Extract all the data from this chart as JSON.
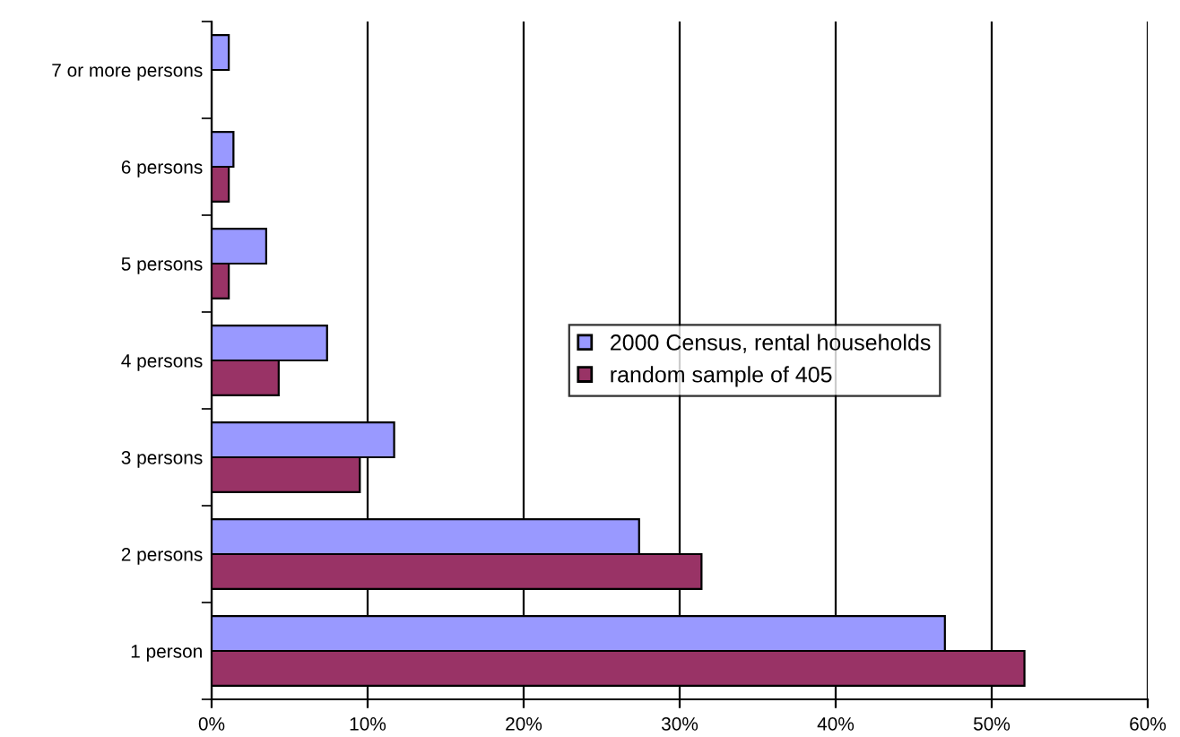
{
  "chart_data": {
    "type": "bar",
    "orientation": "horizontal",
    "categories": [
      "7 or more persons",
      "6 persons",
      "5 persons",
      "4 persons",
      "3 persons",
      "2 persons",
      "1 person"
    ],
    "series": [
      {
        "name": "2000 Census, rental households",
        "color": "#9999ff",
        "values": [
          1.1,
          1.4,
          3.5,
          7.4,
          11.7,
          27.4,
          47.0
        ]
      },
      {
        "name": "random sample of 405",
        "color": "#993366",
        "values": [
          null,
          1.1,
          1.1,
          4.3,
          9.5,
          31.4,
          52.1
        ]
      }
    ],
    "xlim": [
      0,
      60
    ],
    "xticks": [
      {
        "value": 0,
        "label": "0%"
      },
      {
        "value": 10,
        "label": "10%"
      },
      {
        "value": 20,
        "label": "20%"
      },
      {
        "value": 30,
        "label": "30%"
      },
      {
        "value": 40,
        "label": "40%"
      },
      {
        "value": 50,
        "label": "50%"
      },
      {
        "value": 60,
        "label": "60%"
      }
    ],
    "grid": "x",
    "legend": "right"
  }
}
